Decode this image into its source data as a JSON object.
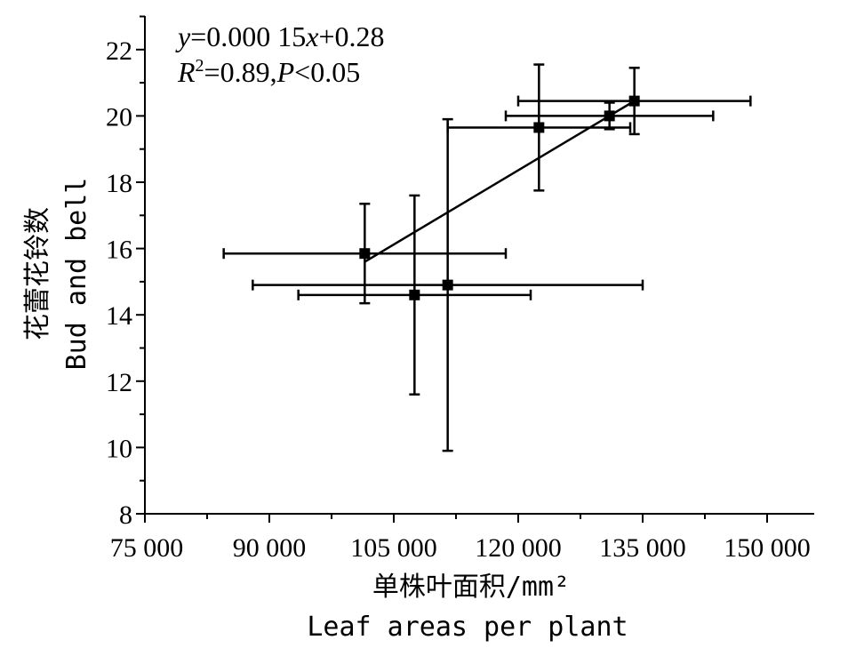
{
  "chart_data": {
    "type": "scatter",
    "title": "",
    "xlabel": "单株叶面积/mm²",
    "xlabel_en": "Leaf areas per plant",
    "ylabel": "花蕾花铃数",
    "ylabel_en": "Bud and bell",
    "xlim": [
      75000,
      153000
    ],
    "ylim": [
      8,
      23
    ],
    "xticks": [
      75000,
      90000,
      105000,
      120000,
      135000,
      150000
    ],
    "xtick_labels": [
      "75 000",
      "90 000",
      "105 000",
      "120 000",
      "135 000",
      "150 000"
    ],
    "yticks": [
      8,
      10,
      12,
      14,
      16,
      18,
      20,
      22
    ],
    "ytick_labels": [
      "8",
      "10",
      "12",
      "14",
      "16",
      "18",
      "20",
      "22"
    ],
    "grid": false,
    "points": [
      {
        "x": 101500,
        "y": 15.85,
        "xerr": 17000,
        "yerr": 1.5
      },
      {
        "x": 107500,
        "y": 14.6,
        "xerr": 14000,
        "yerr": 3.0
      },
      {
        "x": 111500,
        "y": 14.9,
        "xerr": 23500,
        "yerr": 5.0
      },
      {
        "x": 122500,
        "y": 19.65,
        "xerr": 11000,
        "yerr": 1.9
      },
      {
        "x": 131000,
        "y": 20.0,
        "xerr": 12500,
        "yerr": 0.4
      },
      {
        "x": 134000,
        "y": 20.45,
        "xerr": 14000,
        "yerr": 1.0
      }
    ],
    "fit_line": {
      "x": [
        101500,
        134000
      ],
      "y": [
        15.6,
        20.45
      ]
    },
    "annotations": {
      "eq_y": "y",
      "eq_rest": "=0.000 15",
      "eq_x": "x",
      "eq_tail": "+0.28",
      "r2_r": "R",
      "r2_sup": "2",
      "r2_rest": "=0.89,",
      "p_p": "P",
      "p_rest": "<0.05"
    }
  }
}
